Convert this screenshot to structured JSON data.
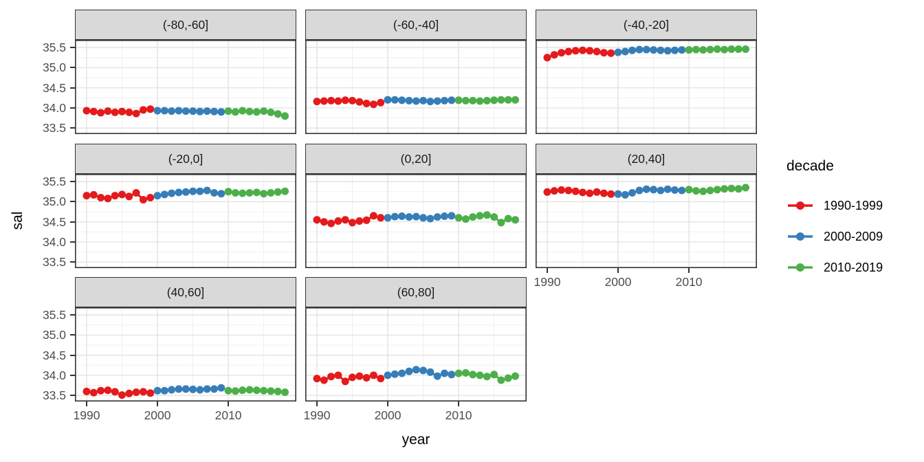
{
  "figure": {
    "y_axis_title": "sal",
    "x_axis_title": "year"
  },
  "legend": {
    "title": "decade",
    "entries": [
      {
        "label": "1990-1999",
        "color": "#E41A1C"
      },
      {
        "label": "2000-2009",
        "color": "#377EB8"
      },
      {
        "label": "2010-2019",
        "color": "#4DAF4A"
      }
    ]
  },
  "chart_data": {
    "type": "line",
    "title": "",
    "xlabel": "year",
    "ylabel": "sal",
    "facet_variable": "latitude band",
    "legend_position": "right",
    "grid": "major and minor, light gray on white, dark panel border (theme_bw)",
    "x_ticks": [
      1990,
      2000,
      2010
    ],
    "y_ticks": [
      33.5,
      34.0,
      34.5,
      35.0,
      35.5
    ],
    "x_minor_ticks": [
      1995,
      2005,
      2015
    ],
    "y_minor_ticks": [
      33.75,
      34.25,
      34.75,
      35.25
    ],
    "xlim": [
      1988.35,
      2019.6
    ],
    "ylim": [
      33.35,
      35.69
    ],
    "years": [
      1990,
      1991,
      1992,
      1993,
      1994,
      1995,
      1996,
      1997,
      1998,
      1999,
      2000,
      2001,
      2002,
      2003,
      2004,
      2005,
      2006,
      2007,
      2008,
      2009,
      2010,
      2011,
      2012,
      2013,
      2014,
      2015,
      2016,
      2017,
      2018
    ],
    "decades": [
      {
        "name": "1990-1999",
        "start": 1990,
        "end": 1999,
        "color": "#E41A1C"
      },
      {
        "name": "2000-2009",
        "start": 2000,
        "end": 2009,
        "color": "#377EB8"
      },
      {
        "name": "2010-2019",
        "start": 2010,
        "end": 2019,
        "color": "#4DAF4A"
      }
    ],
    "facets": [
      {
        "label": "(-80,-60]",
        "row": 0,
        "col": 0,
        "values": [
          33.93,
          33.91,
          33.88,
          33.92,
          33.89,
          33.91,
          33.89,
          33.86,
          33.95,
          33.97,
          33.93,
          33.93,
          33.92,
          33.93,
          33.92,
          33.92,
          33.91,
          33.92,
          33.91,
          33.9,
          33.92,
          33.9,
          33.93,
          33.91,
          33.9,
          33.92,
          33.89,
          33.85,
          33.8
        ]
      },
      {
        "label": "(-60,-40]",
        "row": 0,
        "col": 1,
        "values": [
          34.16,
          34.17,
          34.18,
          34.17,
          34.19,
          34.18,
          34.15,
          34.11,
          34.09,
          34.13,
          34.2,
          34.2,
          34.19,
          34.18,
          34.17,
          34.18,
          34.16,
          34.17,
          34.18,
          34.19,
          34.19,
          34.18,
          34.18,
          34.17,
          34.18,
          34.19,
          34.2,
          34.2,
          34.2
        ]
      },
      {
        "label": "(-40,-20]",
        "row": 0,
        "col": 2,
        "values": [
          35.25,
          35.32,
          35.37,
          35.4,
          35.42,
          35.43,
          35.42,
          35.4,
          35.37,
          35.36,
          35.38,
          35.4,
          35.43,
          35.45,
          35.45,
          35.44,
          35.43,
          35.42,
          35.43,
          35.44,
          35.44,
          35.45,
          35.44,
          35.45,
          35.46,
          35.45,
          35.46,
          35.46,
          35.46
        ]
      },
      {
        "label": "(-20,0]",
        "row": 1,
        "col": 0,
        "values": [
          35.15,
          35.17,
          35.1,
          35.08,
          35.15,
          35.18,
          35.13,
          35.22,
          35.05,
          35.1,
          35.15,
          35.18,
          35.21,
          35.23,
          35.24,
          35.26,
          35.26,
          35.28,
          35.22,
          35.2,
          35.25,
          35.22,
          35.21,
          35.22,
          35.23,
          35.2,
          35.22,
          35.24,
          35.26
        ]
      },
      {
        "label": "(0,20]",
        "row": 1,
        "col": 1,
        "values": [
          34.55,
          34.5,
          34.46,
          34.52,
          34.55,
          34.48,
          34.52,
          34.54,
          34.65,
          34.6,
          34.6,
          34.63,
          34.64,
          34.62,
          34.63,
          34.6,
          34.58,
          34.62,
          34.64,
          34.65,
          34.6,
          34.57,
          34.62,
          34.65,
          34.67,
          34.62,
          34.48,
          34.58,
          34.55
        ]
      },
      {
        "label": "(20,40]",
        "row": 1,
        "col": 2,
        "values": [
          35.24,
          35.27,
          35.29,
          35.28,
          35.26,
          35.23,
          35.21,
          35.24,
          35.21,
          35.19,
          35.19,
          35.17,
          35.22,
          35.28,
          35.31,
          35.3,
          35.28,
          35.31,
          35.29,
          35.28,
          35.3,
          35.27,
          35.26,
          35.28,
          35.3,
          35.32,
          35.33,
          35.32,
          35.35
        ]
      },
      {
        "label": "(40,60]",
        "row": 2,
        "col": 0,
        "values": [
          33.6,
          33.57,
          33.62,
          33.63,
          33.59,
          33.51,
          33.55,
          33.58,
          33.59,
          33.56,
          33.62,
          33.62,
          33.64,
          33.66,
          33.66,
          33.65,
          33.64,
          33.66,
          33.66,
          33.69,
          33.62,
          33.61,
          33.63,
          33.64,
          33.63,
          33.62,
          33.61,
          33.6,
          33.58
        ]
      },
      {
        "label": "(60,80]",
        "row": 2,
        "col": 1,
        "values": [
          33.92,
          33.88,
          33.97,
          34.0,
          33.85,
          33.95,
          33.98,
          33.94,
          34.0,
          33.92,
          34.0,
          34.03,
          34.05,
          34.1,
          34.14,
          34.12,
          34.08,
          33.98,
          34.05,
          34.02,
          34.05,
          34.06,
          34.02,
          34.0,
          33.97,
          34.02,
          33.88,
          33.93,
          33.98
        ]
      }
    ]
  },
  "style": {
    "strip_bg": "#d9d9d9",
    "panel_border": "#333333",
    "grid_major": "#e3e3e3",
    "grid_minor": "#f0f0f0",
    "tick_text": "#4d4d4d"
  }
}
